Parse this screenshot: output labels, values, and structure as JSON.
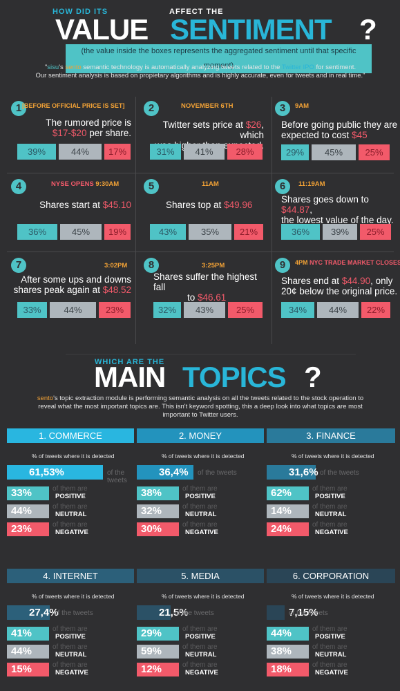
{
  "header": {
    "top_left": "HOW DID ITS",
    "top_right": "AFFECT THE",
    "big_left": "VALUE",
    "big_right": "SENTIMENT",
    "qmark": "?",
    "subtitle": "(the value inside the boxes represents the aggregated sentiment until that specific moment)",
    "intro_q1": "\"",
    "intro_sisu": "sisu",
    "intro_p1": "'s ",
    "intro_sento": "sento",
    "intro_p2": " semantic technology is automatically analyzing tweets related to the ",
    "intro_twitter": "Twitter IPO",
    "intro_p3": " for sentiment.",
    "intro_line2": "Our sentiment analysis is based on propietary algorithms and is highly accurate, even for tweets and in real time.\""
  },
  "events": [
    {
      "num": "1",
      "label_a": "[BEFORE OFFICIAL PRICE IS SET]",
      "label_b": "",
      "line1a": "The rumored price is",
      "line1b": "",
      "line2a": "",
      "line2b": "$17-$20",
      "line2c": " per share.",
      "pos": "39%",
      "neu": "44%",
      "neg": "17%"
    },
    {
      "num": "2",
      "label_a": "NOVEMBER 6TH",
      "label_b": "",
      "line1a": "Twitter sets price at ",
      "line1b": "$26",
      "line1c": ", which",
      "line2a": "was higher than expected.",
      "pos": "31%",
      "neu": "41%",
      "neg": "28%"
    },
    {
      "num": "3",
      "label_a": "9AM",
      "label_b": "",
      "line1a": "Before going public they are",
      "line2a": "expected to cost ",
      "line2b": "$45",
      "pos": "29%",
      "neu": "45%",
      "neg": "25%"
    },
    {
      "num": "4",
      "label_a": "NYSE OPENS ",
      "label_b": "9:30AM",
      "line1a": "Shares start at ",
      "line1b": "$45.10",
      "pos": "36%",
      "neu": "45%",
      "neg": "19%"
    },
    {
      "num": "5",
      "label_a": "11AM",
      "label_b": "",
      "line1a": "Shares top at ",
      "line1b": "$49.96",
      "pos": "43%",
      "neu": "35%",
      "neg": "21%"
    },
    {
      "num": "6",
      "label_a": "11:19AM",
      "label_b": "",
      "line1a": "Shares goes down to ",
      "line1b": "$44.87",
      "line1c": ",",
      "line2a": "the lowest value of the day.",
      "pos": "36%",
      "neu": "39%",
      "neg": "25%"
    },
    {
      "num": "7",
      "label_a": "3:02PM",
      "label_b": "",
      "line1a": "After some ups and downs",
      "line2a": "shares peak again at ",
      "line2b": "$48.52",
      "pos": "33%",
      "neu": "44%",
      "neg": "23%"
    },
    {
      "num": "8",
      "label_a": "3:25PM",
      "label_b": "",
      "line1a": "Shares suffer the highest fall",
      "line2a": "to ",
      "line2b": "$46.61",
      "pos": "32%",
      "neu": "43%",
      "neg": "25%"
    },
    {
      "num": "9",
      "label_a": "4PM",
      "label_b": " NYC TRADE MARKET CLOSES",
      "line1a": "Shares end at ",
      "line1b": "$44.90",
      "line1c": ", only",
      "line2a": "20¢ below the original price.",
      "pos": "34%",
      "neu": "44%",
      "neg": "22%"
    }
  ],
  "topics_header": {
    "small": "WHICH ARE THE",
    "big_left": "MAIN",
    "big_right": "TOPICS",
    "qmark": "?",
    "intro_sento": "sento",
    "intro_rest": "'s topic extraction module is performing semantic analysis on all the tweets related to the stock operation to",
    "intro_line2": "reveal what the most important topics are. This isn't keyword spotting, this a deep look into what topics are most",
    "intro_line3": "important to Twitter users."
  },
  "topic_labels": {
    "pct_note": "% of tweets where it is detected",
    "of_the_tweets": "of the tweets",
    "of_them_are": "of them are",
    "positive": "POSITIVE",
    "neutral": "NEUTRAL",
    "negative": "NEGATIVE"
  },
  "topics": [
    {
      "name": "1. COMMERCE",
      "share": "61,53%",
      "share_value": 61.53,
      "pos": "33%",
      "neu": "44%",
      "neg": "23%",
      "color": "#29b6e0"
    },
    {
      "name": "2. MONEY",
      "share": "36,4%",
      "share_value": 36.4,
      "pos": "38%",
      "neu": "32%",
      "neg": "30%",
      "color": "#2393bd"
    },
    {
      "name": "3. FINANCE",
      "share": "31,6%",
      "share_value": 31.6,
      "pos": "62%",
      "neu": "14%",
      "neg": "24%",
      "color": "#2a7a9b"
    },
    {
      "name": "4. INTERNET",
      "share": "27,4%",
      "share_value": 27.4,
      "pos": "41%",
      "neu": "44%",
      "neg": "15%",
      "color": "#2c607a"
    },
    {
      "name": "5. MEDIA",
      "share": "21,5%",
      "share_value": 21.5,
      "pos": "29%",
      "neu": "59%",
      "neg": "12%",
      "color": "#2b5166"
    },
    {
      "name": "6. CORPORATION",
      "share": "7,15%",
      "share_value": 7.15,
      "pos": "44%",
      "neu": "38%",
      "neg": "18%",
      "color": "#2a4556"
    }
  ]
}
